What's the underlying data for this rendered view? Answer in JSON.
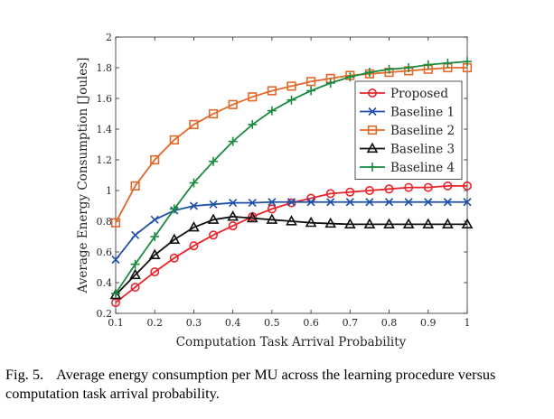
{
  "chart_data": {
    "type": "line",
    "xlabel": "Computation Task Arrival Probability",
    "ylabel": "Average Energy Consumption [Joules]",
    "xlim": [
      0.1,
      1.0
    ],
    "ylim": [
      0.2,
      2.0
    ],
    "xticks": [
      0.1,
      0.2,
      0.3,
      0.4,
      0.5,
      0.6,
      0.7,
      0.8,
      0.9,
      1
    ],
    "yticks": [
      0.2,
      0.4,
      0.6,
      0.8,
      1,
      1.2,
      1.4,
      1.6,
      1.8,
      2
    ],
    "grid": false,
    "legend_position": "center-right",
    "x": [
      0.1,
      0.15,
      0.2,
      0.25,
      0.3,
      0.35,
      0.4,
      0.45,
      0.5,
      0.55,
      0.6,
      0.65,
      0.7,
      0.75,
      0.8,
      0.85,
      0.9,
      0.95,
      1.0
    ],
    "series": [
      {
        "name": "Proposed",
        "color": "#e8242b",
        "marker": "circle",
        "values": [
          0.27,
          0.37,
          0.47,
          0.56,
          0.64,
          0.71,
          0.77,
          0.83,
          0.88,
          0.92,
          0.95,
          0.98,
          0.99,
          1.0,
          1.01,
          1.02,
          1.02,
          1.03,
          1.03
        ]
      },
      {
        "name": "Baseline 1",
        "color": "#1f4fa8",
        "marker": "x",
        "values": [
          0.55,
          0.71,
          0.81,
          0.87,
          0.9,
          0.91,
          0.92,
          0.92,
          0.925,
          0.925,
          0.925,
          0.925,
          0.925,
          0.925,
          0.925,
          0.925,
          0.925,
          0.925,
          0.925
        ]
      },
      {
        "name": "Baseline 2",
        "color": "#e3692a",
        "marker": "square",
        "values": [
          0.79,
          1.03,
          1.2,
          1.33,
          1.43,
          1.5,
          1.56,
          1.61,
          1.65,
          1.68,
          1.71,
          1.73,
          1.75,
          1.76,
          1.77,
          1.78,
          1.79,
          1.8,
          1.8
        ]
      },
      {
        "name": "Baseline 3",
        "color": "#111111",
        "marker": "triangle",
        "values": [
          0.32,
          0.45,
          0.58,
          0.68,
          0.76,
          0.81,
          0.83,
          0.82,
          0.81,
          0.8,
          0.79,
          0.785,
          0.78,
          0.78,
          0.78,
          0.78,
          0.78,
          0.78,
          0.78
        ]
      },
      {
        "name": "Baseline 4",
        "color": "#1a8a3f",
        "marker": "plus",
        "values": [
          0.33,
          0.52,
          0.7,
          0.88,
          1.05,
          1.19,
          1.32,
          1.43,
          1.52,
          1.59,
          1.65,
          1.7,
          1.74,
          1.77,
          1.79,
          1.8,
          1.82,
          1.83,
          1.84
        ]
      }
    ]
  },
  "caption": {
    "label": "Fig. 5.",
    "text": "Average energy consumption per MU across the learning procedure versus computation task arrival probability."
  }
}
